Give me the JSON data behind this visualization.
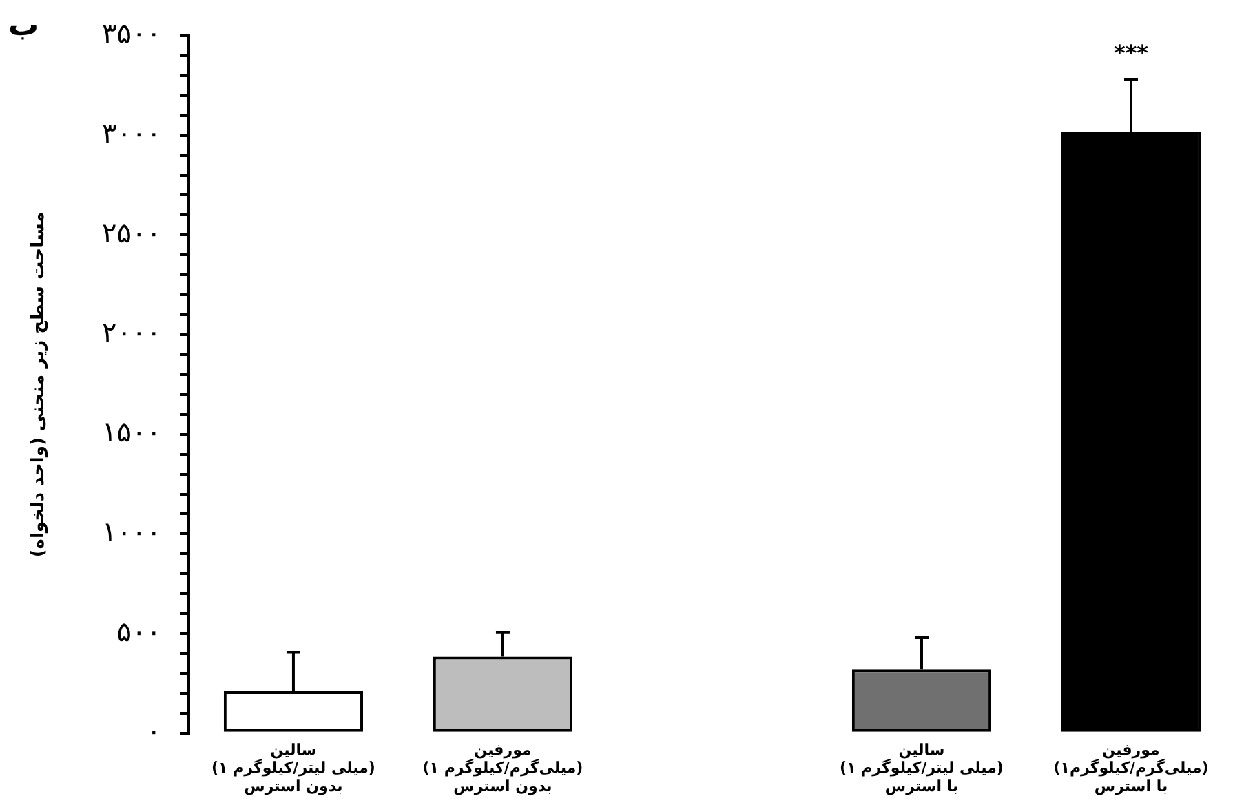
{
  "chart_data": {
    "type": "bar",
    "title": "ب",
    "ylabel": "مساحت سطح زیر منحنی (واحد دلخواه)",
    "categories": [
      "سالین\n(۱ میلی لیتر/کیلوگرم)\nبدون استرس",
      "مورفین\n(۱ میلی‌گرم/کیلوگرم)\nبدون استرس",
      null,
      "سالین\n(۱ میلی لیتر/کیلوگرم)\nبا استرس",
      "مورفین\n(۱میلی‌گرم/کیلوگرم)\nبا استرس"
    ],
    "values": [
      210,
      385,
      null,
      320,
      3020
    ],
    "colors": [
      "#ffffff",
      "#bdbdbd",
      "#ffffff",
      "#707070",
      "#000000"
    ],
    "errors": [
      [
        210,
        405
      ],
      [
        385,
        505
      ],
      null,
      [
        320,
        480
      ],
      [
        3020,
        3280
      ]
    ],
    "ylim": [
      0,
      3500
    ],
    "yticks": [
      {
        "value": 0,
        "label": "۰"
      },
      {
        "value": 100,
        "label": null
      },
      {
        "value": 200,
        "label": null
      },
      {
        "value": 300,
        "label": null
      },
      {
        "value": 400,
        "label": null
      },
      {
        "value": 500,
        "label": "۵۰۰"
      },
      {
        "value": 600,
        "label": null
      },
      {
        "value": 700,
        "label": null
      },
      {
        "value": 800,
        "label": null
      },
      {
        "value": 900,
        "label": null
      },
      {
        "value": 1000,
        "label": "۱۰۰۰"
      },
      {
        "value": 1100,
        "label": null
      },
      {
        "value": 1200,
        "label": null
      },
      {
        "value": 1300,
        "label": null
      },
      {
        "value": 1400,
        "label": null
      },
      {
        "value": 1500,
        "label": "۱۵۰۰"
      },
      {
        "value": 1600,
        "label": null
      },
      {
        "value": 1700,
        "label": null
      },
      {
        "value": 1800,
        "label": null
      },
      {
        "value": 1900,
        "label": null
      },
      {
        "value": 2000,
        "label": "۲۰۰۰"
      },
      {
        "value": 2100,
        "label": null
      },
      {
        "value": 2200,
        "label": null
      },
      {
        "value": 2300,
        "label": null
      },
      {
        "value": 2400,
        "label": null
      },
      {
        "value": 2500,
        "label": "۲۵۰۰"
      },
      {
        "value": 2600,
        "label": null
      },
      {
        "value": 2700,
        "label": null
      },
      {
        "value": 2800,
        "label": null
      },
      {
        "value": 2900,
        "label": null
      },
      {
        "value": 3000,
        "label": "۳۰۰۰"
      },
      {
        "value": 3100,
        "label": null
      },
      {
        "value": 3200,
        "label": null
      },
      {
        "value": 3300,
        "label": null
      },
      {
        "value": 3400,
        "label": null
      },
      {
        "value": 3500,
        "label": "۳۵۰۰"
      }
    ],
    "annotations": [
      "***"
    ],
    "grid": false,
    "legend": false
  }
}
